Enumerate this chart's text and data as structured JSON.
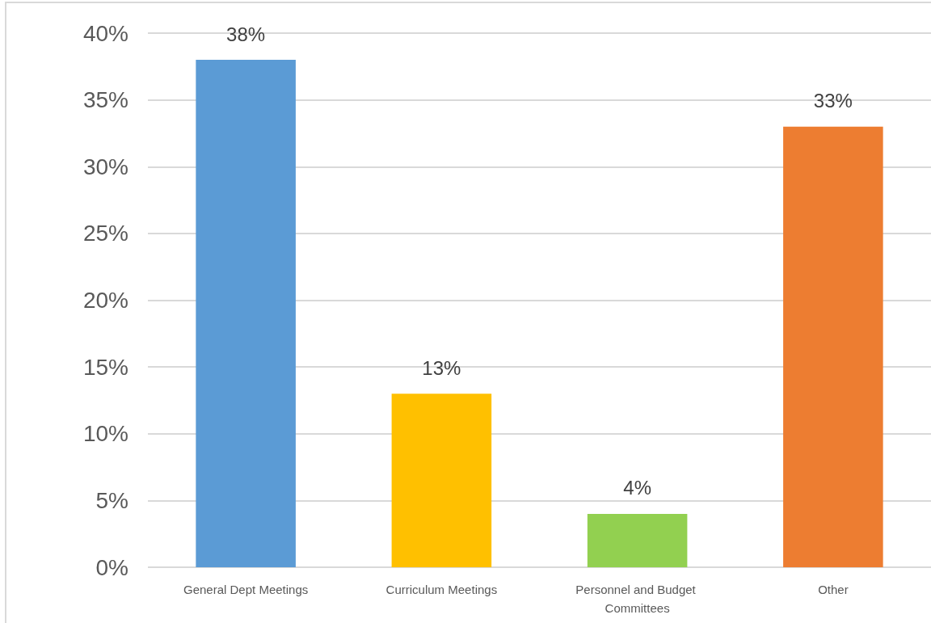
{
  "chart_data": {
    "type": "bar",
    "categories": [
      "General Dept Meetings",
      "Curriculum Meetings",
      "Personnel and Budget Committees",
      "Other"
    ],
    "values": [
      38,
      13,
      4,
      33
    ],
    "colors": [
      "#5b9bd5",
      "#ffc000",
      "#92d050",
      "#ed7d31"
    ],
    "value_labels": [
      "38%",
      "13%",
      "4%",
      "33%"
    ],
    "ylim": [
      0,
      40
    ],
    "yticks": [
      {
        "value": 0,
        "label": "0%"
      },
      {
        "value": 5,
        "label": "5%"
      },
      {
        "value": 10,
        "label": "10%"
      },
      {
        "value": 15,
        "label": "15%"
      },
      {
        "value": 20,
        "label": "20%"
      },
      {
        "value": 25,
        "label": "25%"
      },
      {
        "value": 30,
        "label": "30%"
      },
      {
        "value": 35,
        "label": "35%"
      },
      {
        "value": 40,
        "label": "40%"
      }
    ],
    "grid": "y"
  }
}
